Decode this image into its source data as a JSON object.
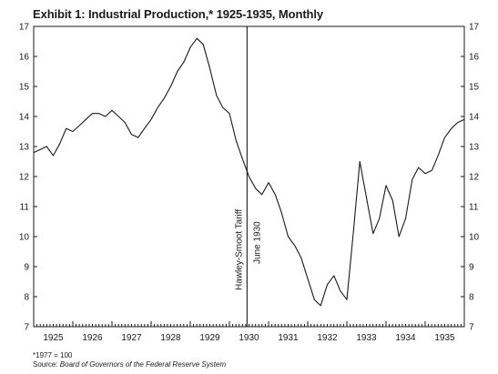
{
  "title": "Exhibit 1: Industrial Production,* 1925-1935, Monthly",
  "footnote": {
    "line1": "*1977 = 100",
    "source_label": "Source: ",
    "source_text": "Board of Governors of the Federal Reserve System"
  },
  "colors": {
    "line": "#1a1a1a",
    "axis": "#1a1a1a",
    "background": "#ffffff"
  },
  "chart_data": {
    "type": "line",
    "title": "Exhibit 1: Industrial Production,* 1925-1935, Monthly",
    "xlabel": "",
    "ylabel": "",
    "x_domain": [
      1925.0,
      1936.0
    ],
    "ylim": [
      7,
      17
    ],
    "x_ticks": [
      "1925",
      "1926",
      "1927",
      "1928",
      "1929",
      "1930",
      "1931",
      "1932",
      "1933",
      "1934",
      "1935"
    ],
    "y_ticks": [
      7,
      8,
      9,
      10,
      11,
      12,
      13,
      14,
      15,
      16,
      17
    ],
    "y_axis_both_sides": true,
    "grid": false,
    "legend": "none",
    "annotation": {
      "x": 1930.45,
      "line1": "Hawley-Smoot Tariff",
      "line2": "June 1930"
    },
    "series": [
      {
        "x": [
          1925.0,
          1925.17,
          1925.33,
          1925.5,
          1925.67,
          1925.83,
          1926.0,
          1926.17,
          1926.33,
          1926.5,
          1926.67,
          1926.83,
          1927.0,
          1927.17,
          1927.33,
          1927.5,
          1927.67,
          1927.83,
          1928.0,
          1928.17,
          1928.33,
          1928.5,
          1928.67,
          1928.83,
          1929.0,
          1929.17,
          1929.33,
          1929.5,
          1929.67,
          1929.83,
          1930.0,
          1930.17,
          1930.33,
          1930.5,
          1930.67,
          1930.83,
          1931.0,
          1931.17,
          1931.33,
          1931.5,
          1931.67,
          1931.83,
          1932.0,
          1932.17,
          1932.33,
          1932.5,
          1932.67,
          1932.83,
          1933.0,
          1933.17,
          1933.33,
          1933.5,
          1933.67,
          1933.83,
          1934.0,
          1934.17,
          1934.33,
          1934.5,
          1934.67,
          1934.83,
          1935.0,
          1935.17,
          1935.33,
          1935.5,
          1935.67,
          1935.83,
          1936.0
        ],
        "values": [
          12.8,
          12.9,
          13.0,
          12.7,
          13.1,
          13.6,
          13.5,
          13.7,
          13.9,
          14.1,
          14.1,
          14.0,
          14.2,
          14.0,
          13.8,
          13.4,
          13.3,
          13.6,
          13.9,
          14.3,
          14.6,
          15.0,
          15.5,
          15.8,
          16.3,
          16.6,
          16.4,
          15.6,
          14.7,
          14.3,
          14.1,
          13.2,
          12.6,
          12.0,
          11.6,
          11.4,
          11.8,
          11.4,
          10.8,
          10.0,
          9.7,
          9.3,
          8.6,
          7.9,
          7.7,
          8.4,
          8.7,
          8.2,
          7.9,
          10.2,
          12.5,
          11.3,
          10.1,
          10.6,
          11.7,
          11.2,
          10.0,
          10.6,
          11.9,
          12.3,
          12.1,
          12.2,
          12.7,
          13.3,
          13.6,
          13.8,
          13.9
        ]
      }
    ]
  }
}
